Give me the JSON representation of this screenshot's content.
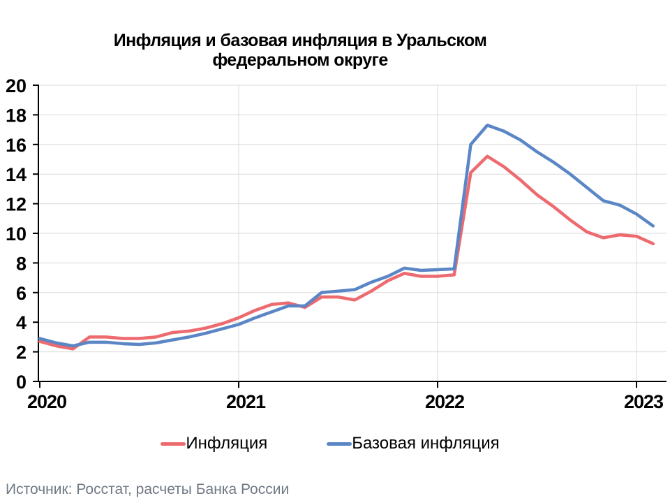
{
  "title": {
    "lines": [
      "Инфляция и базовая инфляция в Уральском",
      "федеральном округе"
    ]
  },
  "source": "Источник: Росстат, расчеты Банка России",
  "legend": [
    {
      "label": "Инфляция",
      "color": "#ED6A6F"
    },
    {
      "label": "Базовая инфляция",
      "color": "#5B86C5"
    }
  ],
  "colors": {
    "inflation_line": "#ED6A6F",
    "core_inflation_line": "#5B86C5",
    "gridline": "#D9D9D9",
    "axis": "#000000",
    "source_text": "#6F7984"
  },
  "chart_data": {
    "type": "line",
    "title": "Инфляция и базовая инфляция в Уральском федеральном округе",
    "xlabel": "",
    "ylabel": "",
    "ylim": [
      0,
      20
    ],
    "y_ticks": [
      0,
      2,
      4,
      6,
      8,
      10,
      12,
      14,
      16,
      18,
      20
    ],
    "x_ticks": [
      "2020",
      "2021",
      "2022",
      "2023"
    ],
    "grid": true,
    "legend_position": "bottom",
    "x_labels": [
      "2020-01",
      "2020-02",
      "2020-03",
      "2020-04",
      "2020-05",
      "2020-06",
      "2020-07",
      "2020-08",
      "2020-09",
      "2020-10",
      "2020-11",
      "2020-12",
      "2021-01",
      "2021-02",
      "2021-03",
      "2021-04",
      "2021-05",
      "2021-06",
      "2021-07",
      "2021-08",
      "2021-09",
      "2021-10",
      "2021-11",
      "2021-12",
      "2022-01",
      "2022-02",
      "2022-03",
      "2022-04",
      "2022-05",
      "2022-06",
      "2022-07",
      "2022-08",
      "2022-09",
      "2022-10",
      "2022-11",
      "2022-12",
      "2023-01",
      "2023-02"
    ],
    "series": [
      {
        "name": "Инфляция",
        "color": "#ED6A6F",
        "values": [
          2.7,
          2.4,
          2.2,
          3.0,
          3.0,
          2.9,
          2.9,
          3.0,
          3.3,
          3.4,
          3.6,
          3.9,
          4.3,
          4.8,
          5.2,
          5.3,
          5.0,
          5.7,
          5.7,
          5.5,
          6.1,
          6.8,
          7.3,
          7.1,
          7.1,
          7.2,
          14.1,
          15.2,
          14.5,
          13.6,
          12.6,
          11.8,
          10.9,
          10.1,
          9.7,
          9.9,
          9.8,
          9.3
        ]
      },
      {
        "name": "Базовая инфляция",
        "color": "#5B86C5",
        "values": [
          2.9,
          2.6,
          2.4,
          2.65,
          2.65,
          2.55,
          2.5,
          2.6,
          2.8,
          3.0,
          3.25,
          3.55,
          3.85,
          4.3,
          4.7,
          5.1,
          5.1,
          6.0,
          6.1,
          6.2,
          6.7,
          7.1,
          7.65,
          7.5,
          7.55,
          7.6,
          16.0,
          17.3,
          16.9,
          16.3,
          15.5,
          14.8,
          14.0,
          13.1,
          12.2,
          11.9,
          11.3,
          10.5
        ]
      }
    ]
  }
}
